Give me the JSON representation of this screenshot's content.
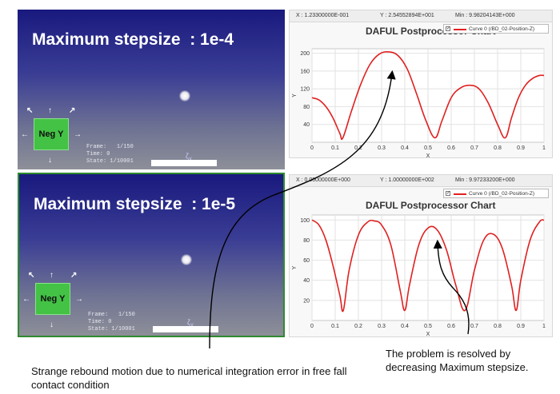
{
  "top_view": {
    "title": "Maximum stepsize  : 1e-4",
    "frame_label": "Frame:",
    "frame_value": "1/150",
    "time_label": "Time:",
    "time_value": "0",
    "state_label": "State:",
    "state_value": "1/10001",
    "gizmo_label": "Neg Y"
  },
  "bottom_view": {
    "title": "Maximum stepsize  : 1e-5",
    "frame_label": "Frame:",
    "frame_value": "1/150",
    "time_label": "Time:",
    "time_value": "0",
    "state_label": "State:",
    "state_value": "1/10001",
    "gizmo_label": "Neg Y"
  },
  "top_chart_panel": {
    "x_readout": "X : 1.23300000E-001",
    "y_readout": "Y : 2.54552894E+001",
    "min_readout": "Min : 9.98204143E+000",
    "legend": "Curve 0 (/BD_02-Position-Z)",
    "legend_checked": "✓"
  },
  "bottom_chart_panel": {
    "x_readout": "X : 0.00000000E+000",
    "y_readout": "Y : 1.00000000E+002",
    "min_readout": "Min : 9.97233200E+000",
    "legend": "Curve 0 (/BD_02-Position-Z)",
    "legend_checked": "✓"
  },
  "annotations": {
    "left": "Strange rebound motion due to numerical integration error in free fall contact condition",
    "right": "The problem is resolved by decreasing Maximum stepsize."
  },
  "colors": {
    "curve": "#e02020",
    "viewport_top": "#19197e",
    "viewport_bottom": "#8d8f98",
    "gizmo": "#43c245",
    "selected_border": "#2f8a2f"
  },
  "icons": [
    "axis-arrow-icon",
    "gizmo-cube-icon",
    "ball-icon",
    "annotation-arrow-icon"
  ],
  "chart_data": [
    {
      "type": "line",
      "title": "DAFUL Postprocessor Chart",
      "xlabel": "X",
      "ylabel": "Y",
      "xlim": [
        0,
        1
      ],
      "ylim": [
        0,
        210
      ],
      "xticks": [
        0,
        0.1,
        0.2,
        0.3,
        0.4,
        0.5,
        0.6,
        0.7,
        0.8,
        0.9,
        1
      ],
      "yticks": [
        40,
        80,
        120,
        160,
        200
      ],
      "grid": true,
      "legend_position": "top-right",
      "series": [
        {
          "name": "Curve 0 (/BD_02-Position-Z)",
          "x": [
            0,
            0.03,
            0.06,
            0.09,
            0.12,
            0.133,
            0.17,
            0.21,
            0.25,
            0.29,
            0.33,
            0.37,
            0.41,
            0.45,
            0.49,
            0.53,
            0.56,
            0.6,
            0.64,
            0.68,
            0.72,
            0.76,
            0.8,
            0.833,
            0.86,
            0.89,
            0.92,
            0.95,
            0.98,
            1
          ],
          "y": [
            100,
            95,
            80,
            55,
            20,
            10,
            70,
            130,
            175,
            198,
            203,
            195,
            165,
            110,
            50,
            10,
            48,
            100,
            122,
            128,
            120,
            88,
            40,
            10,
            55,
            100,
            128,
            143,
            150,
            150
          ]
        }
      ]
    },
    {
      "type": "line",
      "title": "DAFUL Postprocessor Chart",
      "xlabel": "X",
      "ylabel": "Y",
      "xlim": [
        0,
        1
      ],
      "ylim": [
        0,
        105
      ],
      "xticks": [
        0,
        0.1,
        0.2,
        0.3,
        0.4,
        0.5,
        0.6,
        0.7,
        0.8,
        0.9,
        1
      ],
      "yticks": [
        20,
        40,
        60,
        80,
        100
      ],
      "grid": true,
      "legend_position": "top-right",
      "series": [
        {
          "name": "Curve 0 (/BD_02-Position-Z)",
          "x": [
            0,
            0.03,
            0.06,
            0.09,
            0.12,
            0.135,
            0.16,
            0.2,
            0.24,
            0.27,
            0.3,
            0.34,
            0.38,
            0.4,
            0.42,
            0.46,
            0.5,
            0.54,
            0.58,
            0.62,
            0.66,
            0.7,
            0.74,
            0.78,
            0.82,
            0.86,
            0.88,
            0.9,
            0.94,
            0.98,
            1
          ],
          "y": [
            100,
            95,
            80,
            55,
            25,
            10,
            50,
            85,
            98,
            99,
            95,
            75,
            30,
            10,
            35,
            75,
            92,
            90,
            70,
            35,
            10,
            50,
            80,
            86,
            72,
            35,
            10,
            40,
            80,
            98,
            100
          ]
        }
      ]
    }
  ]
}
